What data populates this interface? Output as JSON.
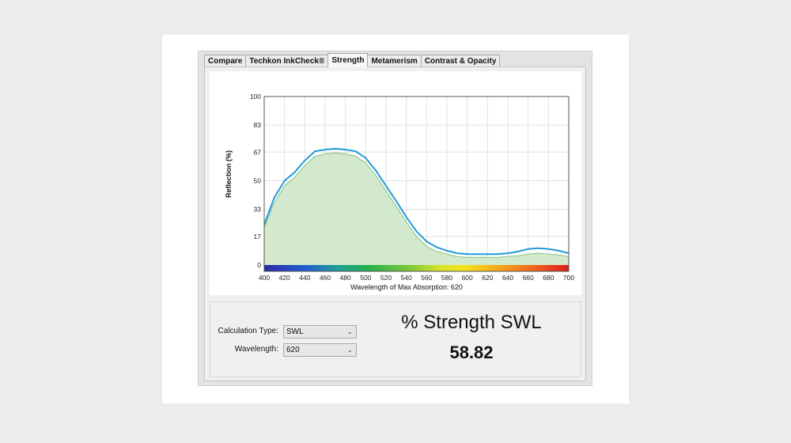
{
  "tabs": [
    {
      "label": "Compare"
    },
    {
      "label": "Techkon InkCheck®"
    },
    {
      "label": "Strength"
    },
    {
      "label": "Metamerism"
    },
    {
      "label": "Contrast & Opacity"
    }
  ],
  "active_tab": "Strength",
  "chart": {
    "ylabel": "Reflection (%)",
    "xlabel": "Wavelength of Max Absorption: 620"
  },
  "chart_data": {
    "type": "area",
    "xlabel": "Wavelength of Max Absorption: 620",
    "ylabel": "Reflection (%)",
    "xlim": [
      400,
      700
    ],
    "ylim": [
      0,
      100
    ],
    "x_ticks": [
      400,
      420,
      440,
      460,
      480,
      500,
      520,
      540,
      560,
      580,
      600,
      620,
      640,
      660,
      680,
      700
    ],
    "y_ticks": [
      0,
      17,
      33,
      50,
      67,
      83,
      100
    ],
    "grid": true,
    "spectrum_bar": true,
    "series": [
      {
        "color": "#1e9ad6",
        "style": "line",
        "x": [
          400,
          410,
          420,
          430,
          440,
          450,
          460,
          470,
          480,
          490,
          500,
          510,
          520,
          530,
          540,
          550,
          560,
          570,
          580,
          590,
          600,
          610,
          620,
          630,
          640,
          650,
          660,
          670,
          680,
          690,
          700
        ],
        "y": [
          24,
          40,
          50,
          55,
          62,
          67.5,
          68.5,
          69,
          68.5,
          67.5,
          63.5,
          56,
          47,
          38,
          28.5,
          20,
          14,
          10.5,
          8.5,
          7,
          6.5,
          6.5,
          6.5,
          6.5,
          7,
          8,
          9.5,
          10,
          9.5,
          8.5,
          7
        ]
      },
      {
        "color": "#95c98d",
        "fill": "#d3e9cd",
        "style": "area",
        "x": [
          400,
          410,
          420,
          430,
          440,
          450,
          460,
          470,
          480,
          490,
          500,
          510,
          520,
          530,
          540,
          550,
          560,
          570,
          580,
          590,
          600,
          610,
          620,
          630,
          640,
          650,
          660,
          670,
          680,
          690,
          700
        ],
        "y": [
          22,
          37,
          47,
          52,
          59,
          64.5,
          66,
          66.5,
          66,
          64.5,
          60.5,
          53,
          44,
          35,
          25.5,
          17,
          11,
          8,
          6.5,
          5,
          4.5,
          4.5,
          4.5,
          4.5,
          5,
          5.5,
          6.5,
          7,
          6.5,
          6,
          5
        ]
      }
    ]
  },
  "controls": {
    "calc_type_label": "Calculation Type:",
    "calc_type_value": "SWL",
    "wavelength_label": "Wavelength:",
    "wavelength_value": "620"
  },
  "result": {
    "title": "% Strength SWL",
    "value": "58.82"
  }
}
